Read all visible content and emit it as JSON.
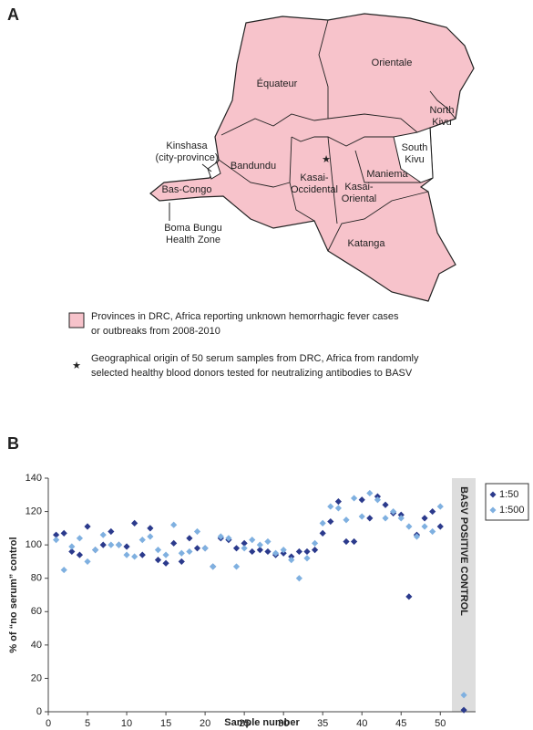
{
  "map": {
    "panel_label": "A",
    "provinces": {
      "equateur": "Équateur",
      "orientale": "Orientale",
      "north_kivu": [
        "North",
        "Kivu"
      ],
      "south_kivu": [
        "South",
        "Kivu"
      ],
      "bandundu": "Bandundu",
      "kasai_occidental": [
        "Kasai-",
        "Occidental"
      ],
      "kasai_oriental": [
        "Kasai-",
        "Oriental"
      ],
      "maniema": "Maniema",
      "bas_congo": "Bas-Congo",
      "katanga": "Katanga"
    },
    "kinshasa": [
      "Kinshasa",
      "(city-province)"
    ],
    "boma": [
      "Boma Bungu",
      "Health Zone"
    ],
    "legend": [
      [
        "Provinces in DRC, Africa reporting unknown hemorrhagic fever cases",
        "or outbreaks from 2008-2010"
      ],
      [
        "Geographical origin of 50 serum samples from DRC, Africa from randomly",
        "selected healthy blood donors tested for neutralizing antibodies to BASV"
      ]
    ]
  },
  "chart_data": {
    "type": "scatter",
    "panel_label": "B",
    "xlabel": "Sample number",
    "ylabel": "% of “no serum” control",
    "annotation": "BASV POSITIVE CONTROL",
    "x": [
      1,
      2,
      3,
      4,
      5,
      6,
      7,
      8,
      9,
      10,
      11,
      12,
      13,
      14,
      15,
      16,
      17,
      18,
      19,
      20,
      21,
      22,
      23,
      24,
      25,
      26,
      27,
      28,
      29,
      30,
      31,
      32,
      33,
      34,
      35,
      36,
      37,
      38,
      39,
      40,
      41,
      42,
      43,
      44,
      45,
      46,
      47,
      48,
      49,
      50,
      53
    ],
    "series": [
      {
        "name": "1:50",
        "color": "#2b3a8c",
        "values": [
          106,
          107,
          96,
          94,
          111,
          97,
          100,
          108,
          100,
          99,
          113,
          94,
          110,
          91,
          89,
          101,
          90,
          104,
          98,
          98,
          87,
          104,
          103,
          98,
          101,
          96,
          97,
          96,
          94,
          95,
          93,
          96,
          96,
          97,
          107,
          114,
          126,
          102,
          102,
          127,
          116,
          129,
          124,
          119,
          118,
          69,
          106,
          116,
          120,
          111,
          1
        ]
      },
      {
        "name": "1:500",
        "color": "#7fb0e0",
        "values": [
          103,
          85,
          99,
          104,
          90,
          97,
          106,
          100,
          100,
          94,
          93,
          103,
          105,
          97,
          94,
          112,
          95,
          96,
          108,
          98,
          87,
          105,
          104,
          87,
          98,
          103,
          100,
          102,
          95,
          97,
          91,
          80,
          92,
          101,
          113,
          123,
          122,
          115,
          128,
          117,
          131,
          127,
          116,
          120,
          116,
          111,
          105,
          111,
          108,
          123,
          10
        ]
      }
    ],
    "xlim": [
      0,
      54.5
    ],
    "ylim": [
      0,
      140
    ],
    "xticks": [
      0,
      5,
      10,
      15,
      20,
      25,
      30,
      35,
      40,
      45,
      50
    ],
    "yticks": [
      0,
      20,
      40,
      60,
      80,
      100,
      120,
      140
    ],
    "legend": "right"
  }
}
